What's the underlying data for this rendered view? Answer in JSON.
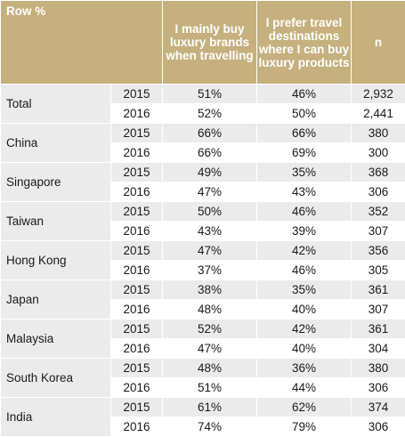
{
  "chart_data": {
    "type": "table",
    "columns": {
      "row_pct": "Row %",
      "col1": "I mainly buy luxury brands when travelling",
      "col2": "I prefer travel destinations where I can buy luxury products",
      "col3": "n"
    },
    "rows": [
      {
        "country": "Total",
        "years": [
          {
            "year": "2015",
            "col1": "51%",
            "col2": "46%",
            "n": "2,932"
          },
          {
            "year": "2016",
            "col1": "52%",
            "col2": "50%",
            "n": "2,441"
          }
        ]
      },
      {
        "country": "China",
        "years": [
          {
            "year": "2015",
            "col1": "66%",
            "col2": "66%",
            "n": "380"
          },
          {
            "year": "2016",
            "col1": "66%",
            "col2": "69%",
            "n": "300"
          }
        ]
      },
      {
        "country": "Singapore",
        "years": [
          {
            "year": "2015",
            "col1": "49%",
            "col2": "35%",
            "n": "368"
          },
          {
            "year": "2016",
            "col1": "47%",
            "col2": "43%",
            "n": "306"
          }
        ]
      },
      {
        "country": "Taiwan",
        "years": [
          {
            "year": "2015",
            "col1": "50%",
            "col2": "46%",
            "n": "352"
          },
          {
            "year": "2016",
            "col1": "43%",
            "col2": "39%",
            "n": "307"
          }
        ]
      },
      {
        "country": "Hong Kong",
        "years": [
          {
            "year": "2015",
            "col1": "47%",
            "col2": "42%",
            "n": "356"
          },
          {
            "year": "2016",
            "col1": "37%",
            "col2": "46%",
            "n": "305"
          }
        ]
      },
      {
        "country": "Japan",
        "years": [
          {
            "year": "2015",
            "col1": "38%",
            "col2": "35%",
            "n": "361"
          },
          {
            "year": "2016",
            "col1": "48%",
            "col2": "40%",
            "n": "307"
          }
        ]
      },
      {
        "country": "Malaysia",
        "years": [
          {
            "year": "2015",
            "col1": "52%",
            "col2": "42%",
            "n": "361"
          },
          {
            "year": "2016",
            "col1": "47%",
            "col2": "40%",
            "n": "304"
          }
        ]
      },
      {
        "country": "South Korea",
        "years": [
          {
            "year": "2015",
            "col1": "48%",
            "col2": "36%",
            "n": "380"
          },
          {
            "year": "2016",
            "col1": "51%",
            "col2": "44%",
            "n": "306"
          }
        ]
      },
      {
        "country": "India",
        "years": [
          {
            "year": "2015",
            "col1": "61%",
            "col2": "62%",
            "n": "374"
          },
          {
            "year": "2016",
            "col1": "74%",
            "col2": "79%",
            "n": "306"
          }
        ]
      }
    ]
  },
  "colors": {
    "header_bg": "#c5b07e",
    "header_text": "#ffffff",
    "shaded_row": "#ebebeb",
    "plain_row": "#ffffff"
  }
}
